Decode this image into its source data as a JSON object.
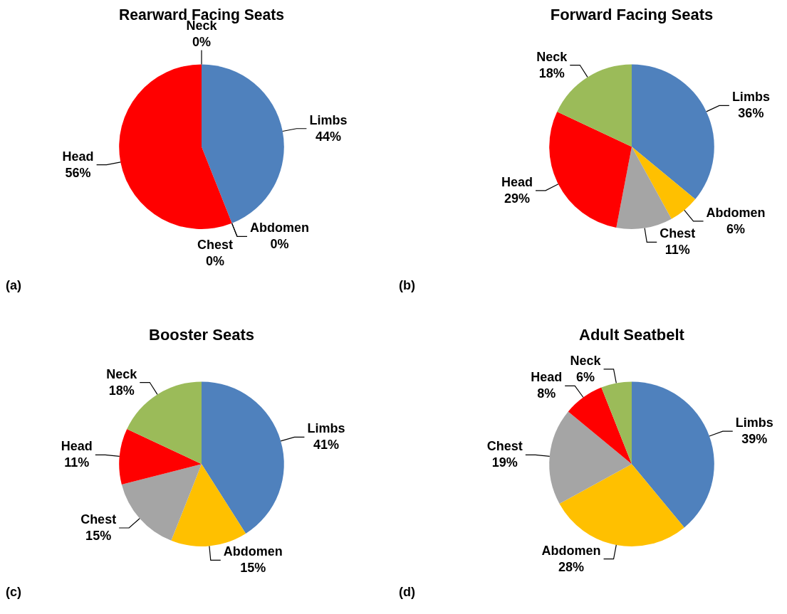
{
  "chart_data": [
    {
      "type": "pie",
      "title": "Rearward Facing Seats",
      "categories": [
        "Limbs",
        "Abdomen",
        "Chest",
        "Head",
        "Neck"
      ],
      "values": [
        44,
        0,
        0,
        56,
        0
      ],
      "value_labels": [
        "44%",
        "0%",
        "0%",
        "56%",
        "0%"
      ],
      "colors": [
        "#4f81bd",
        "#ffc000",
        "#a5a5a5",
        "#ff0000",
        "#9bbb59"
      ],
      "annotations": [
        "(a)"
      ]
    },
    {
      "type": "pie",
      "title": "Forward Facing Seats",
      "categories": [
        "Limbs",
        "Abdomen",
        "Chest",
        "Head",
        "Neck"
      ],
      "values": [
        36,
        6,
        11,
        29,
        18
      ],
      "value_labels": [
        "36%",
        "6%",
        "11%",
        "29%",
        "18%"
      ],
      "colors": [
        "#4f81bd",
        "#ffc000",
        "#a5a5a5",
        "#ff0000",
        "#9bbb59"
      ],
      "annotations": [
        "(b)"
      ]
    },
    {
      "type": "pie",
      "title": "Booster Seats",
      "categories": [
        "Limbs",
        "Abdomen",
        "Chest",
        "Head",
        "Neck"
      ],
      "values": [
        41,
        15,
        15,
        11,
        18
      ],
      "value_labels": [
        "41%",
        "15%",
        "15%",
        "11%",
        "18%"
      ],
      "colors": [
        "#4f81bd",
        "#ffc000",
        "#a5a5a5",
        "#ff0000",
        "#9bbb59"
      ],
      "annotations": [
        "(c)"
      ]
    },
    {
      "type": "pie",
      "title": "Adult Seatbelt",
      "categories": [
        "Limbs",
        "Abdomen",
        "Chest",
        "Head",
        "Neck"
      ],
      "values": [
        39,
        28,
        19,
        8,
        6
      ],
      "value_labels": [
        "39%",
        "28%",
        "19%",
        "8%",
        "6%"
      ],
      "colors": [
        "#4f81bd",
        "#ffc000",
        "#a5a5a5",
        "#ff0000",
        "#9bbb59"
      ],
      "annotations": [
        "(d)"
      ]
    }
  ]
}
